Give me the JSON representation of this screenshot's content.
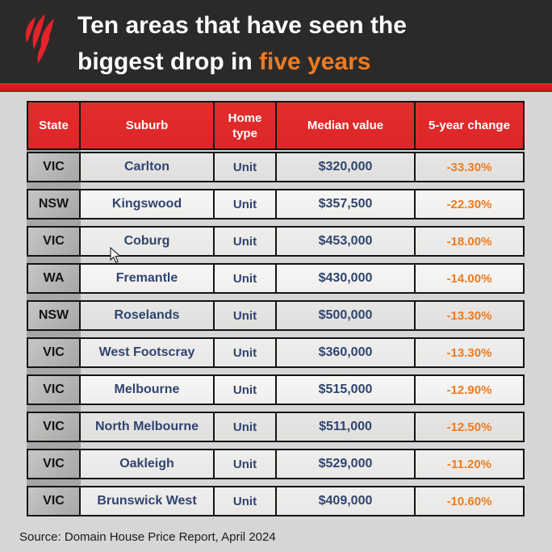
{
  "header": {
    "title_line1": "Ten areas that have seen the",
    "title_line2_prefix": "biggest drop in ",
    "title_line2_highlight": "five years",
    "logo_name": "sbs-logo"
  },
  "table": {
    "columns": [
      "State",
      "Suburb",
      "Home type",
      "Median value",
      "5-year change"
    ],
    "rows": [
      {
        "state": "VIC",
        "suburb": "Carlton",
        "home_type": "Unit",
        "median_value": "$320,000",
        "change": "-33.30%"
      },
      {
        "state": "NSW",
        "suburb": "Kingswood",
        "home_type": "Unit",
        "median_value": "$357,500",
        "change": "-22.30%"
      },
      {
        "state": "VIC",
        "suburb": "Coburg",
        "home_type": "Unit",
        "median_value": "$453,000",
        "change": "-18.00%"
      },
      {
        "state": "WA",
        "suburb": "Fremantle",
        "home_type": "Unit",
        "median_value": "$430,000",
        "change": "-14.00%"
      },
      {
        "state": "NSW",
        "suburb": "Roselands",
        "home_type": "Unit",
        "median_value": "$500,000",
        "change": "-13.30%"
      },
      {
        "state": "VIC",
        "suburb": "West Footscray",
        "home_type": "Unit",
        "median_value": "$360,000",
        "change": "-13.30%"
      },
      {
        "state": "VIC",
        "suburb": "Melbourne",
        "home_type": "Unit",
        "median_value": "$515,000",
        "change": "-12.90%"
      },
      {
        "state": "VIC",
        "suburb": "North Melbourne",
        "home_type": "Unit",
        "median_value": "$511,000",
        "change": "-12.50%"
      },
      {
        "state": "VIC",
        "suburb": "Oakleigh",
        "home_type": "Unit",
        "median_value": "$529,000",
        "change": "-11.20%"
      },
      {
        "state": "VIC",
        "suburb": "Brunswick West",
        "home_type": "Unit",
        "median_value": "$409,000",
        "change": "-10.60%"
      }
    ]
  },
  "source": "Source: Domain House Price Report, April 2024",
  "colors": {
    "page-bg": "#d7d6d4",
    "band-bg": "#2c2a29",
    "strip-red-top": "#ef1d24",
    "strip-red-bottom": "#c2151a",
    "header-red": "#e32d2d",
    "accent-orange": "#ee7b1f",
    "navy": "#2f4470",
    "state-strip": "#a7a6a4",
    "border-black": "#141414",
    "logo-red": "#e4232b"
  },
  "chart_data": {
    "type": "table",
    "title": "Ten areas that have seen the biggest drop in five years",
    "columns": [
      "State",
      "Suburb",
      "Home type",
      "Median value",
      "5-year change"
    ],
    "rows": [
      [
        "VIC",
        "Carlton",
        "Unit",
        320000,
        -33.3
      ],
      [
        "NSW",
        "Kingswood",
        "Unit",
        357500,
        -22.3
      ],
      [
        "VIC",
        "Coburg",
        "Unit",
        453000,
        -18.0
      ],
      [
        "WA",
        "Fremantle",
        "Unit",
        430000,
        -14.0
      ],
      [
        "NSW",
        "Roselands",
        "Unit",
        500000,
        -13.3
      ],
      [
        "VIC",
        "West Footscray",
        "Unit",
        360000,
        -13.3
      ],
      [
        "VIC",
        "Melbourne",
        "Unit",
        515000,
        -12.9
      ],
      [
        "VIC",
        "North Melbourne",
        "Unit",
        511000,
        -12.5
      ],
      [
        "VIC",
        "Oakleigh",
        "Unit",
        529000,
        -11.2
      ],
      [
        "VIC",
        "Brunswick West",
        "Unit",
        409000,
        -10.6
      ]
    ],
    "source": "Source: Domain House Price Report, April 2024",
    "units": {
      "median_value": "AUD",
      "change": "percent over 5 years"
    }
  }
}
